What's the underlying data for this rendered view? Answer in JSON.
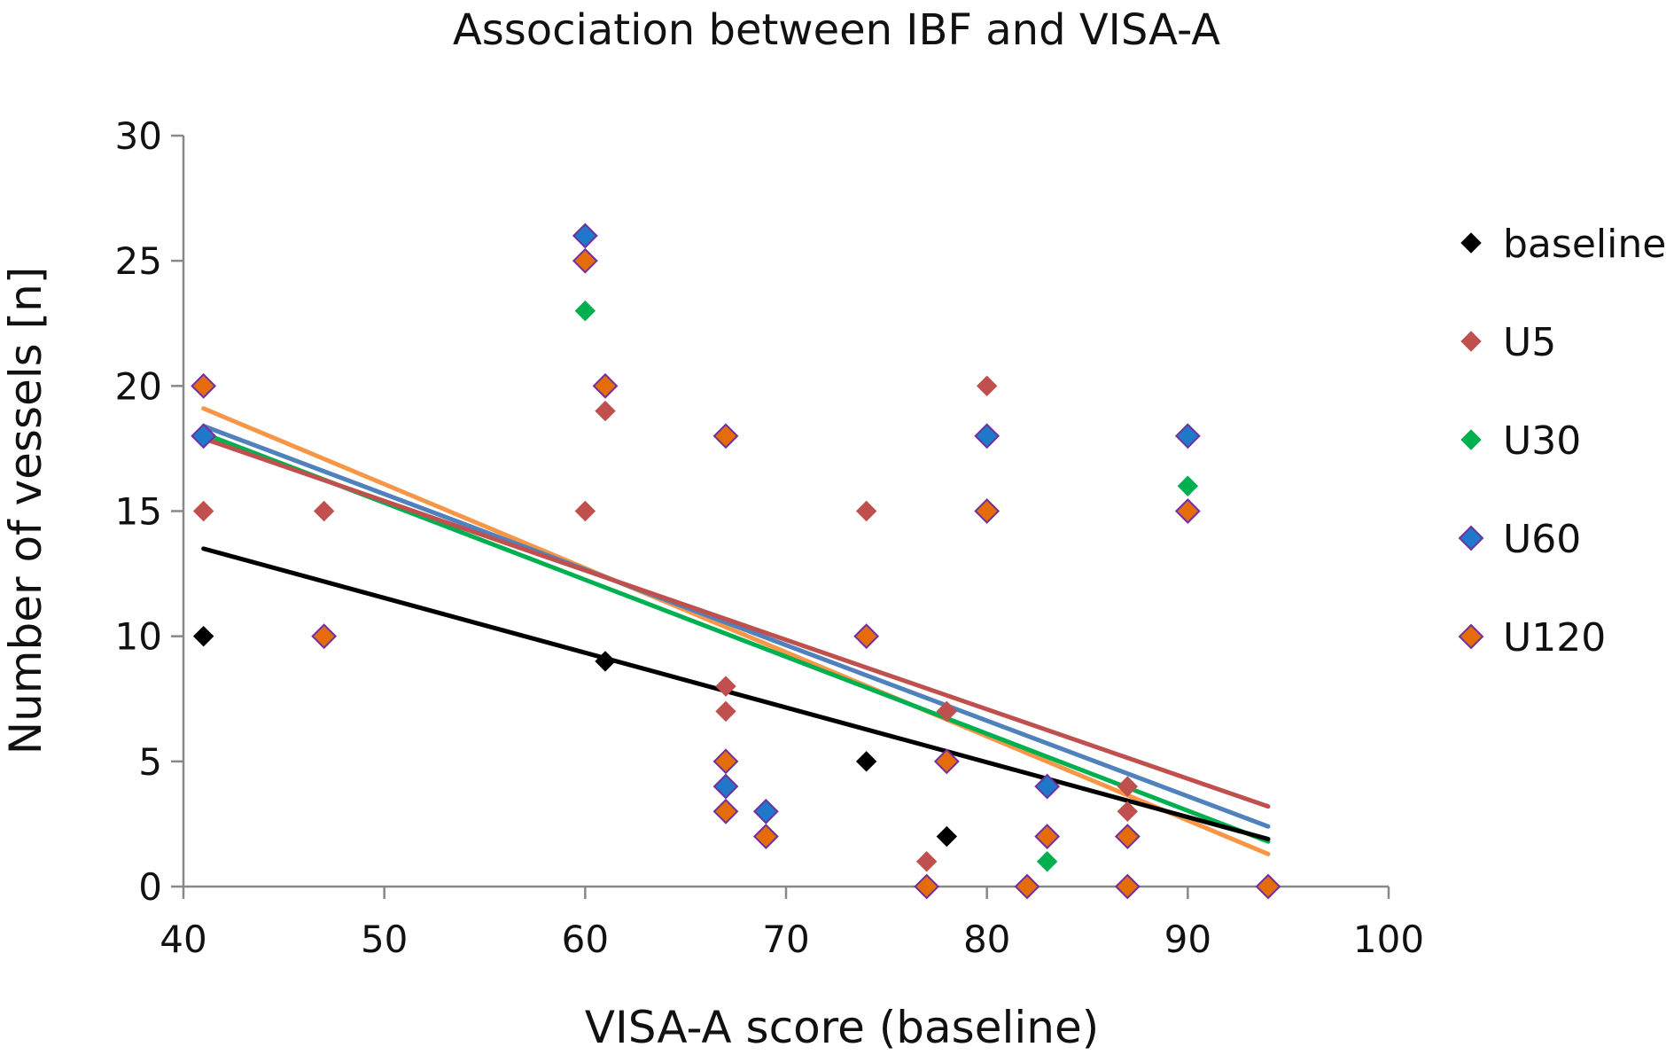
{
  "chart_data": {
    "type": "scatter",
    "title": "Association between IBF and VISA-A",
    "xlabel": "VISA-A score (baseline)",
    "ylabel": "Number of vessels [n]",
    "xlim": [
      40,
      100
    ],
    "ylim": [
      0,
      30
    ],
    "xticks": [
      "40",
      "50",
      "60",
      "70",
      "80",
      "90",
      "100"
    ],
    "yticks": [
      "0",
      "5",
      "10",
      "15",
      "20",
      "25",
      "30"
    ],
    "legend_position": "right",
    "series": [
      {
        "name": "baseline",
        "color": "#000000",
        "border": "#000000",
        "trend_color": "#000000",
        "points": [
          [
            41,
            10
          ],
          [
            61,
            9
          ],
          [
            74,
            5
          ],
          [
            78,
            2
          ]
        ],
        "trendline": [
          [
            41,
            13.5
          ],
          [
            94,
            1.9
          ]
        ]
      },
      {
        "name": "U5",
        "color": "#c0504d",
        "border": "#c0504d",
        "trend_color": "#c0504d",
        "points": [
          [
            41,
            15
          ],
          [
            47,
            15
          ],
          [
            60,
            15
          ],
          [
            61,
            19
          ],
          [
            67,
            8
          ],
          [
            67,
            7
          ],
          [
            74,
            15
          ],
          [
            77,
            1
          ],
          [
            78,
            7
          ],
          [
            80,
            20
          ],
          [
            87,
            4
          ],
          [
            87,
            3
          ]
        ],
        "trendline": [
          [
            41,
            17.9
          ],
          [
            94,
            3.2
          ]
        ]
      },
      {
        "name": "U30",
        "color": "#00b050",
        "border": "#00b050",
        "trend_color": "#00b050",
        "points": [
          [
            60,
            23
          ],
          [
            83,
            1
          ],
          [
            90,
            16
          ]
        ],
        "trendline": [
          [
            41,
            18.1
          ],
          [
            94,
            1.8
          ]
        ]
      },
      {
        "name": "U60",
        "color": "#1f78c8",
        "border": "#7030a0",
        "trend_color": "#4f81bd",
        "points": [
          [
            41,
            18
          ],
          [
            60,
            26
          ],
          [
            67,
            4
          ],
          [
            69,
            3
          ],
          [
            80,
            18
          ],
          [
            83,
            4
          ],
          [
            90,
            18
          ]
        ],
        "trendline": [
          [
            41,
            18.4
          ],
          [
            94,
            2.4
          ]
        ]
      },
      {
        "name": "U120",
        "color": "#e46c0a",
        "border": "#7030a0",
        "trend_color": "#f79646",
        "points": [
          [
            41,
            20
          ],
          [
            47,
            10
          ],
          [
            60,
            25
          ],
          [
            61,
            20
          ],
          [
            67,
            18
          ],
          [
            67,
            5
          ],
          [
            67,
            3
          ],
          [
            69,
            2
          ],
          [
            74,
            10
          ],
          [
            77,
            0
          ],
          [
            78,
            5
          ],
          [
            80,
            15
          ],
          [
            82,
            0
          ],
          [
            83,
            2
          ],
          [
            87,
            2
          ],
          [
            87,
            0
          ],
          [
            90,
            15
          ],
          [
            94,
            0
          ]
        ],
        "trendline": [
          [
            41,
            19.1
          ],
          [
            94,
            1.3
          ]
        ]
      }
    ]
  }
}
